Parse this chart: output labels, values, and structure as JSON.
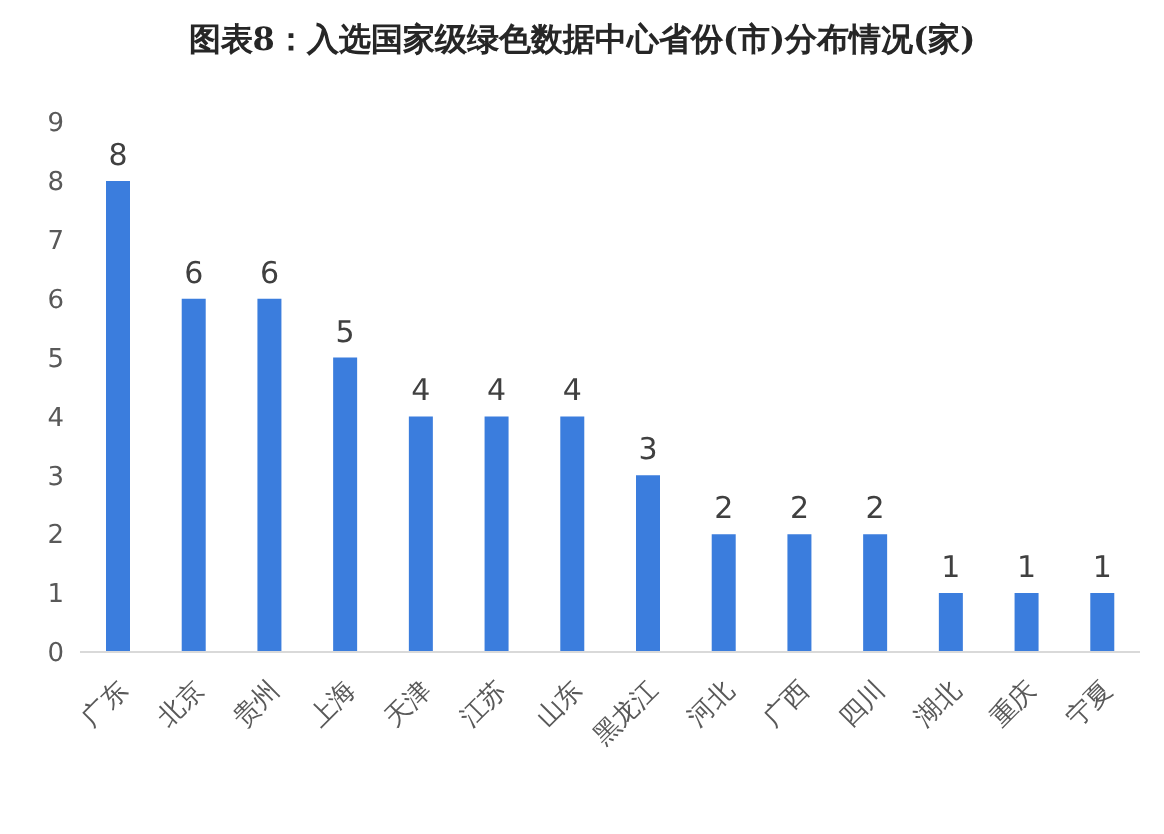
{
  "chart_data": {
    "type": "bar",
    "title": "图表8：入选国家级绿色数据中心省份(市)分布情况(家)",
    "categories": [
      "广东",
      "北京",
      "贵州",
      "上海",
      "天津",
      "江苏",
      "山东",
      "黑龙江",
      "河北",
      "广西",
      "四川",
      "湖北",
      "重庆",
      "宁夏"
    ],
    "values": [
      8,
      6,
      6,
      5,
      4,
      4,
      4,
      3,
      2,
      2,
      2,
      1,
      1,
      1
    ],
    "color": "#3b7ddd",
    "ylim": [
      0,
      9
    ],
    "yticks": [
      0,
      1,
      2,
      3,
      4,
      5,
      6,
      7,
      8,
      9
    ],
    "data_labels": true
  }
}
